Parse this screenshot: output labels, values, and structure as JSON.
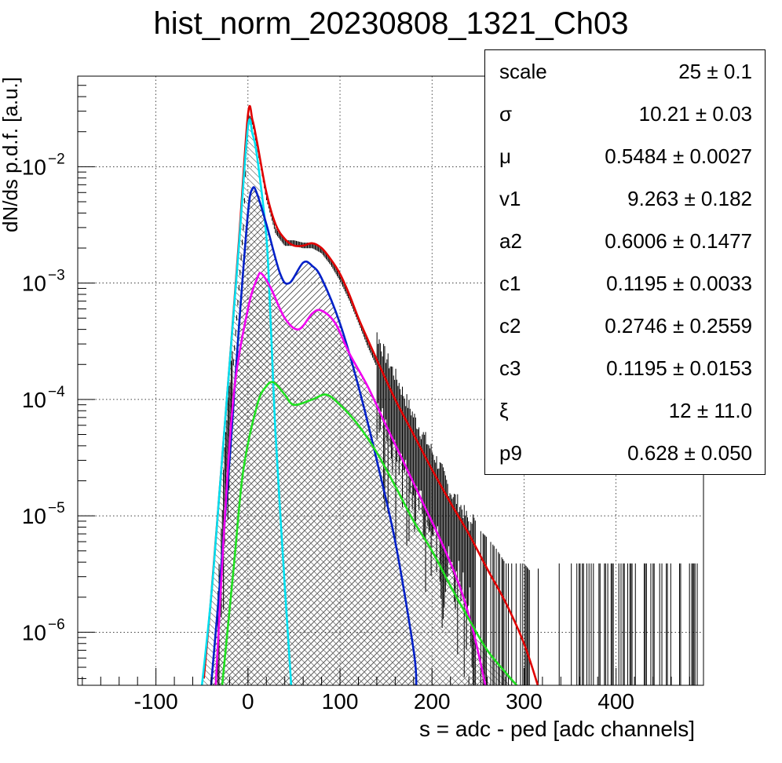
{
  "chart_data": {
    "type": "line",
    "title": "hist_norm_20230808_1321_Ch03",
    "xlabel": "s = adc - ped [adc channels]",
    "ylabel": "dN/ds p.d.f. [a.u.]",
    "xlim": [
      -185,
      495
    ],
    "ylim": [
      3.5e-07,
      0.06
    ],
    "yscale": "log",
    "grid": true,
    "x_ticks": [
      "-100",
      "0",
      "100",
      "200",
      "300",
      "400"
    ],
    "x_tick_values": [
      -100,
      0,
      100,
      200,
      300,
      400
    ],
    "y_ticks": [
      {
        "base": "10",
        "exp": "-6",
        "value": 1e-06
      },
      {
        "base": "10",
        "exp": "-5",
        "value": 1e-05
      },
      {
        "base": "10",
        "exp": "-4",
        "value": 0.0001
      },
      {
        "base": "10",
        "exp": "-3",
        "value": 0.001
      },
      {
        "base": "10",
        "exp": "-2",
        "value": 0.01
      }
    ],
    "series": [
      {
        "color": "#e00000",
        "fill": false,
        "points": [
          [
            -48,
            4e-07
          ],
          [
            -40,
            2e-06
          ],
          [
            -30,
            2e-05
          ],
          [
            -20,
            0.0002
          ],
          [
            -10,
            0.0022
          ],
          [
            0,
            0.028
          ],
          [
            5,
            0.025
          ],
          [
            10,
            0.016
          ],
          [
            20,
            0.006
          ],
          [
            30,
            0.0032
          ],
          [
            40,
            0.0024
          ],
          [
            50,
            0.0021
          ],
          [
            60,
            0.0021
          ],
          [
            70,
            0.0022
          ],
          [
            80,
            0.002
          ],
          [
            90,
            0.0016
          ],
          [
            100,
            0.0012
          ],
          [
            110,
            0.0008
          ],
          [
            120,
            0.0005
          ],
          [
            130,
            0.00033
          ],
          [
            140,
            0.00022
          ],
          [
            160,
            0.0001
          ],
          [
            180,
            5e-05
          ],
          [
            200,
            2.5e-05
          ],
          [
            220,
            1.3e-05
          ],
          [
            240,
            7e-06
          ],
          [
            260,
            3.5e-06
          ],
          [
            280,
            1.8e-06
          ],
          [
            300,
            8e-07
          ],
          [
            315,
            3.5e-07
          ]
        ]
      },
      {
        "color": "#00e0f0",
        "fill": true,
        "hatch": "diag-back",
        "points": [
          [
            -50,
            3.5e-07
          ],
          [
            -40,
            2e-06
          ],
          [
            -30,
            2e-05
          ],
          [
            -20,
            0.0002
          ],
          [
            -10,
            0.002
          ],
          [
            0,
            0.022
          ],
          [
            5,
            0.019
          ],
          [
            10,
            0.012
          ],
          [
            20,
            0.0025
          ],
          [
            25,
            0.0004
          ],
          [
            30,
            5e-05
          ],
          [
            40,
            2.5e-06
          ],
          [
            47,
            3.5e-07
          ]
        ]
      },
      {
        "color": "#0020c8",
        "fill": true,
        "hatch": "diag-fwd",
        "points": [
          [
            -40,
            3.5e-07
          ],
          [
            -30,
            3e-06
          ],
          [
            -20,
            3e-05
          ],
          [
            -10,
            0.0004
          ],
          [
            0,
            0.004
          ],
          [
            5,
            0.0065
          ],
          [
            10,
            0.0058
          ],
          [
            20,
            0.0032
          ],
          [
            35,
            0.0012
          ],
          [
            45,
            0.001
          ],
          [
            60,
            0.0015
          ],
          [
            70,
            0.0014
          ],
          [
            80,
            0.0011
          ],
          [
            100,
            0.00045
          ],
          [
            120,
            0.00013
          ],
          [
            140,
            3e-05
          ],
          [
            160,
            6e-06
          ],
          [
            180,
            7e-07
          ],
          [
            183,
            3.5e-07
          ]
        ]
      },
      {
        "color": "#f000f0",
        "fill": true,
        "hatch": "cross",
        "points": [
          [
            -35,
            3.5e-07
          ],
          [
            -25,
            1e-05
          ],
          [
            -15,
            0.00012
          ],
          [
            0,
            0.0006
          ],
          [
            10,
            0.0011
          ],
          [
            15,
            0.0012
          ],
          [
            25,
            0.0009
          ],
          [
            40,
            0.0005
          ],
          [
            55,
            0.0004
          ],
          [
            70,
            0.00055
          ],
          [
            80,
            0.00058
          ],
          [
            95,
            0.00045
          ],
          [
            110,
            0.00025
          ],
          [
            130,
            0.00013
          ],
          [
            150,
            6e-05
          ],
          [
            170,
            2.8e-05
          ],
          [
            190,
            1.3e-05
          ],
          [
            210,
            6e-06
          ],
          [
            230,
            2.5e-06
          ],
          [
            245,
            1e-06
          ],
          [
            258,
            3.5e-07
          ]
        ]
      },
      {
        "color": "#20e020",
        "fill": true,
        "hatch": "diag-back",
        "points": [
          [
            -28,
            3.5e-07
          ],
          [
            -15,
            4e-06
          ],
          [
            -5,
            2.5e-05
          ],
          [
            10,
            9e-05
          ],
          [
            20,
            0.00013
          ],
          [
            28,
            0.00014
          ],
          [
            40,
            0.00011
          ],
          [
            50,
            9e-05
          ],
          [
            70,
            0.0001
          ],
          [
            85,
            0.00011
          ],
          [
            100,
            9e-05
          ],
          [
            120,
            6e-05
          ],
          [
            140,
            3.5e-05
          ],
          [
            160,
            1.8e-05
          ],
          [
            180,
            9e-06
          ],
          [
            200,
            5e-06
          ],
          [
            220,
            2.5e-06
          ],
          [
            240,
            1.3e-06
          ],
          [
            260,
            7e-07
          ],
          [
            280,
            4.5e-07
          ],
          [
            292,
            3.5e-07
          ]
        ]
      }
    ],
    "data_histogram": {
      "color": "#000000",
      "points": [
        [
          -35,
          3e-07
        ],
        [
          -25,
          2.5e-05
        ],
        [
          -15,
          0.00025
        ],
        [
          -5,
          0.003
        ],
        [
          0,
          0.027
        ],
        [
          5,
          0.024
        ],
        [
          10,
          0.015
        ],
        [
          20,
          0.0055
        ],
        [
          30,
          0.0028
        ],
        [
          40,
          0.0022
        ],
        [
          50,
          0.0022
        ],
        [
          60,
          0.0021
        ],
        [
          70,
          0.0021
        ],
        [
          80,
          0.0019
        ],
        [
          90,
          0.0015
        ],
        [
          100,
          0.0011
        ],
        [
          110,
          0.00075
        ],
        [
          120,
          0.00048
        ],
        [
          130,
          0.0003
        ],
        [
          140,
          0.0002
        ],
        [
          150,
          0.00013
        ],
        [
          160,
          9e-05
        ],
        [
          170,
          6e-05
        ],
        [
          180,
          4e-05
        ],
        [
          190,
          2.8e-05
        ],
        [
          200,
          2e-05
        ],
        [
          210,
          1.4e-05
        ],
        [
          220,
          9e-06
        ],
        [
          230,
          7e-06
        ],
        [
          240,
          5e-06
        ],
        [
          250,
          3e-06
        ],
        [
          260,
          2.5e-06
        ],
        [
          270,
          2e-06
        ],
        [
          280,
          1.5e-06
        ],
        [
          290,
          1.5e-06
        ],
        [
          300,
          1.5e-06
        ],
        [
          310,
          1.2e-06
        ],
        [
          320,
          1.5e-06
        ],
        [
          330,
          1.5e-06
        ],
        [
          350,
          1.5e-06
        ],
        [
          390,
          1.5e-06
        ],
        [
          445,
          1.5e-06
        ],
        [
          490,
          1.5e-06
        ]
      ]
    }
  },
  "stats": [
    {
      "name": "scale",
      "value": "25 ± 0.1"
    },
    {
      "name": "σ",
      "value": "10.21 ± 0.03"
    },
    {
      "name": "μ",
      "value": "0.5484 ± 0.0027"
    },
    {
      "name": "v1",
      "value": "9.263 ± 0.182"
    },
    {
      "name": "a2",
      "value": "0.6006 ± 0.1477"
    },
    {
      "name": "c1",
      "value": "0.1195 ± 0.0033"
    },
    {
      "name": "c2",
      "value": "0.2746 ± 0.2559"
    },
    {
      "name": "c3",
      "value": "0.1195 ± 0.0153"
    },
    {
      "name": "ξ",
      "value": "12 ± 11.0"
    },
    {
      "name": "p9",
      "value": "0.628 ± 0.050"
    }
  ]
}
